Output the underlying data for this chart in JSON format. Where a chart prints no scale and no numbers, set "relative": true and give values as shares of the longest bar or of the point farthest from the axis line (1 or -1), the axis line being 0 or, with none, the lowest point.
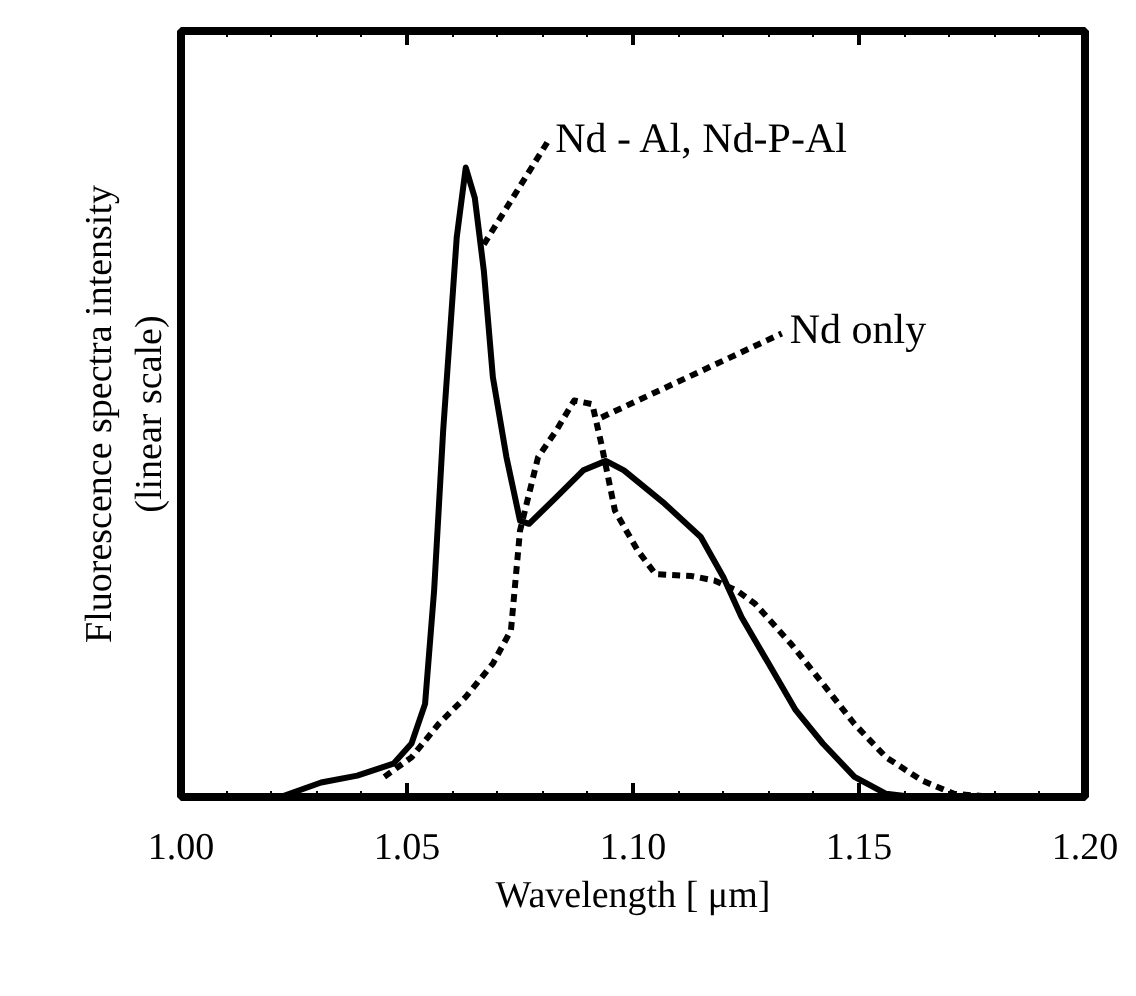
{
  "chart_data": {
    "type": "line",
    "relative": true,
    "xlabel": "Wavelength [ μm]",
    "ylabel": "Fluorescence spectra intensity\n(linear scale)",
    "xlim": [
      1.0,
      1.2
    ],
    "xticks": [
      {
        "value": 1.0,
        "label": "1.00"
      },
      {
        "value": 1.05,
        "label": "1.05"
      },
      {
        "value": 1.1,
        "label": "1.10"
      },
      {
        "value": 1.15,
        "label": "1.15"
      },
      {
        "value": 1.2,
        "label": "1.20"
      }
    ],
    "grid": false,
    "marker": "none",
    "series": [
      {
        "color": "#000000",
        "line_style": "solid",
        "x": [
          1.022,
          1.031,
          1.039,
          1.047,
          1.051,
          1.054,
          1.056,
          1.058,
          1.061,
          1.063,
          1.065,
          1.067,
          1.069,
          1.072,
          1.075,
          1.077,
          1.083,
          1.089,
          1.094,
          1.098,
          1.107,
          1.115,
          1.12,
          1.124,
          1.13,
          1.136,
          1.142,
          1.149,
          1.156,
          1.162
        ],
        "values": [
          0,
          0.023,
          0.034,
          0.053,
          0.085,
          0.148,
          0.328,
          0.582,
          0.889,
          1,
          0.952,
          0.836,
          0.667,
          0.54,
          0.439,
          0.434,
          0.476,
          0.519,
          0.534,
          0.519,
          0.466,
          0.413,
          0.349,
          0.286,
          0.212,
          0.138,
          0.085,
          0.032,
          0.005,
          0
        ]
      },
      {
        "color": "#000000",
        "line_style": "dashed",
        "x": [
          1.045,
          1.051,
          1.057,
          1.063,
          1.069,
          1.073,
          1.075,
          1.079,
          1.083,
          1.087,
          1.091,
          1.093,
          1.096,
          1.101,
          1.105,
          1.113,
          1.118,
          1.123,
          1.127,
          1.135,
          1.142,
          1.149,
          1.156,
          1.164,
          1.171,
          1.18
        ],
        "values": [
          0.032,
          0.063,
          0.116,
          0.159,
          0.212,
          0.265,
          0.423,
          0.54,
          0.582,
          0.63,
          0.624,
          0.561,
          0.455,
          0.392,
          0.354,
          0.351,
          0.344,
          0.328,
          0.307,
          0.243,
          0.18,
          0.116,
          0.063,
          0.026,
          0.005,
          0
        ]
      }
    ],
    "annotations": [
      {
        "text": "Nd - Al, Nd-P-Al",
        "x": 1.067,
        "y": 0.878
      },
      {
        "text": "Nd only",
        "x": 1.093,
        "y": 0.603
      }
    ]
  }
}
